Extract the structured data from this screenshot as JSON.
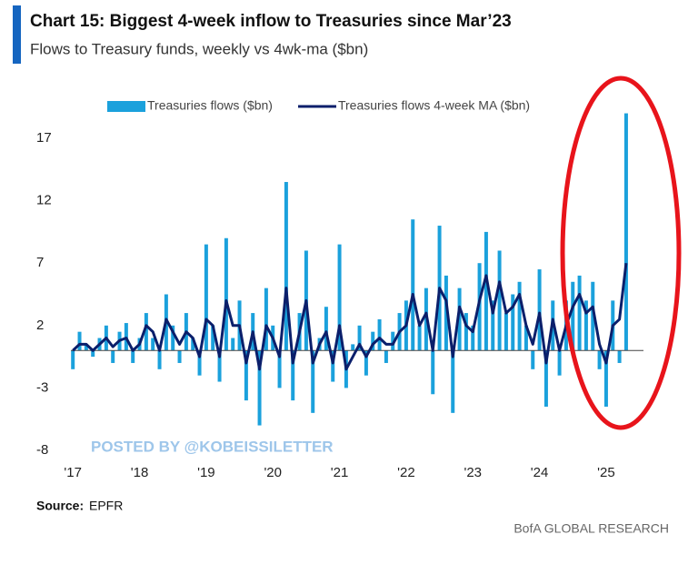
{
  "chart_data": {
    "type": "bar-line",
    "title": "Chart 15: Biggest 4-week inflow to Treasuries since Mar’23",
    "subtitle": "Flows to Treasury funds, weekly vs 4wk-ma ($bn)",
    "source_label": "Source:",
    "source": "EPFR",
    "credit": "BofA GLOBAL RESEARCH",
    "watermark": "POSTED BY @KOBEISSILETTER",
    "x": [
      2017,
      2017.1,
      2017.2,
      2017.3,
      2017.4,
      2017.5,
      2017.6,
      2017.7,
      2017.8,
      2017.9,
      2018,
      2018.1,
      2018.2,
      2018.3,
      2018.4,
      2018.5,
      2018.6,
      2018.7,
      2018.8,
      2018.9,
      2019,
      2019.1,
      2019.2,
      2019.3,
      2019.4,
      2019.5,
      2019.6,
      2019.7,
      2019.8,
      2019.9,
      2020,
      2020.1,
      2020.2,
      2020.3,
      2020.4,
      2020.5,
      2020.6,
      2020.7,
      2020.8,
      2020.9,
      2021,
      2021.1,
      2021.2,
      2021.3,
      2021.4,
      2021.5,
      2021.6,
      2021.7,
      2021.8,
      2021.9,
      2022,
      2022.1,
      2022.2,
      2022.3,
      2022.4,
      2022.5,
      2022.6,
      2022.7,
      2022.8,
      2022.9,
      2023,
      2023.1,
      2023.2,
      2023.3,
      2023.4,
      2023.5,
      2023.6,
      2023.7,
      2023.8,
      2023.9,
      2024,
      2024.1,
      2024.2,
      2024.3,
      2024.4,
      2024.5,
      2024.6,
      2024.7,
      2024.8,
      2024.9,
      2025,
      2025.1,
      2025.2,
      2025.3
    ],
    "series": [
      {
        "name": "Treasuries flows ($bn)",
        "color": "#1ba1dc",
        "style": "bar",
        "values": [
          -1.5,
          1.5,
          0.5,
          -0.5,
          1,
          2,
          -1,
          1.5,
          2.2,
          -1,
          1,
          3,
          1,
          -1.5,
          4.5,
          2,
          -1,
          3,
          1,
          -2,
          8.5,
          2,
          -2.5,
          9,
          1,
          4,
          -4,
          3,
          -6,
          5,
          2,
          -3,
          13.5,
          -4,
          3,
          8,
          -5,
          1,
          3.5,
          -2.5,
          8.5,
          -3,
          0.5,
          2,
          -2,
          1.5,
          2.5,
          -1,
          1.5,
          3,
          4,
          10.5,
          2,
          5,
          -3.5,
          10,
          6,
          -5,
          5,
          3,
          2,
          7,
          9.5,
          4,
          8,
          3,
          4.5,
          5.5,
          2,
          -1.5,
          6.5,
          -4.5,
          4,
          -2,
          4,
          5.5,
          6,
          4,
          5.5,
          -1.5,
          -4.5,
          4,
          -1,
          19
        ]
      },
      {
        "name": "Treasuries flows 4-week MA ($bn)",
        "color": "#0b1f6b",
        "style": "line",
        "values": [
          0,
          0.5,
          0.5,
          0,
          0.5,
          1,
          0.3,
          0.8,
          1,
          0,
          0.5,
          2,
          1.5,
          0,
          2.5,
          1.5,
          0.5,
          1.5,
          1,
          -0.5,
          2.5,
          2,
          -0.5,
          4,
          2,
          2,
          -1,
          1.5,
          -1.5,
          2,
          1,
          -0.5,
          5,
          -1,
          1.5,
          4,
          -1,
          0.5,
          1.5,
          -1,
          2,
          -1.5,
          -0.5,
          0.5,
          -0.5,
          0.5,
          1,
          0.5,
          0.5,
          1.5,
          2,
          4.5,
          2,
          3,
          0,
          5,
          4,
          -0.5,
          3.5,
          2,
          1.5,
          4,
          6,
          3,
          5.5,
          3,
          3.5,
          4.5,
          2,
          0.5,
          3,
          -1,
          2.5,
          0,
          2,
          3.5,
          4.5,
          3,
          3.5,
          0.5,
          -1,
          2,
          2.5,
          7
        ]
      }
    ],
    "xlim": [
      2016.97,
      2025.56
    ],
    "xticks": [
      {
        "value": 2017,
        "label": "'17"
      },
      {
        "value": 2018,
        "label": "'18"
      },
      {
        "value": 2019,
        "label": "'19"
      },
      {
        "value": 2020,
        "label": "'20"
      },
      {
        "value": 2021,
        "label": "'21"
      },
      {
        "value": 2022,
        "label": "'22"
      },
      {
        "value": 2023,
        "label": "'23"
      },
      {
        "value": 2024,
        "label": "'24"
      },
      {
        "value": 2025,
        "label": "'25"
      }
    ],
    "ylim": [
      -8,
      17
    ],
    "yticks": [
      -8,
      -3,
      2,
      7,
      12,
      17
    ],
    "legend": "top"
  }
}
